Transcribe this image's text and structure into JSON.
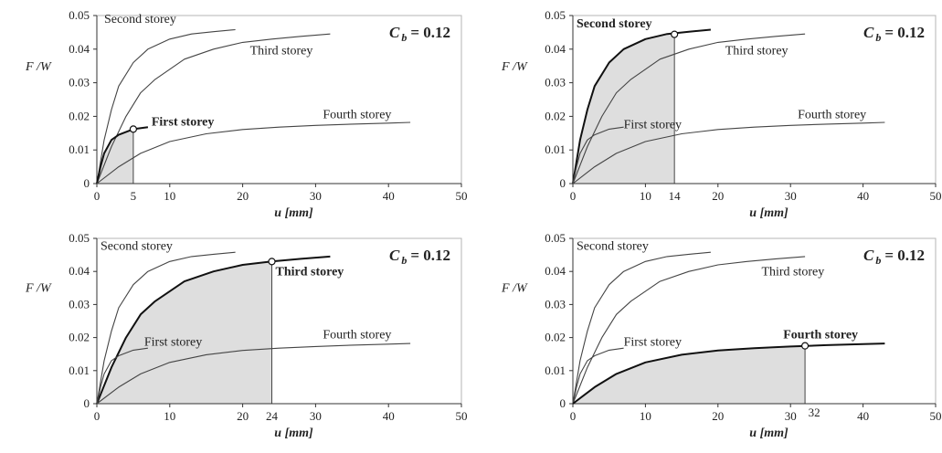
{
  "chart_data": [
    {
      "type": "line",
      "highlight": "First storey",
      "marker": {
        "x": 5,
        "y": 0.0162
      },
      "marker_label": "5",
      "coefficient": {
        "symbol": "C",
        "subscript": "b",
        "value": "= 0.12"
      },
      "xlabel": "u [mm]",
      "ylabel": "F /W",
      "xlim": [
        0,
        50
      ],
      "ylim": [
        0,
        0.05
      ],
      "xticks": [
        "0",
        "10",
        "20",
        "30",
        "40",
        "50"
      ],
      "yticks": [
        "0",
        "0.01",
        "0.02",
        "0.03",
        "0.04",
        "0.05"
      ],
      "series": [
        {
          "name": "Second storey",
          "x": [
            0,
            1,
            2,
            3,
            5,
            7,
            10,
            13,
            16,
            19
          ],
          "y": [
            0,
            0.013,
            0.022,
            0.029,
            0.036,
            0.04,
            0.043,
            0.0445,
            0.0452,
            0.0458
          ]
        },
        {
          "name": "Third storey",
          "x": [
            0,
            2,
            4,
            6,
            8,
            12,
            16,
            20,
            24,
            28,
            32
          ],
          "y": [
            0,
            0.011,
            0.02,
            0.027,
            0.031,
            0.037,
            0.04,
            0.042,
            0.043,
            0.0438,
            0.0445
          ]
        },
        {
          "name": "First storey",
          "x": [
            0,
            0.5,
            1,
            2,
            3,
            5,
            7
          ],
          "y": [
            0,
            0.005,
            0.009,
            0.013,
            0.0145,
            0.0162,
            0.0168
          ]
        },
        {
          "name": "Fourth storey",
          "x": [
            0,
            3,
            6,
            10,
            15,
            20,
            25,
            30,
            35,
            40,
            43
          ],
          "y": [
            0,
            0.005,
            0.009,
            0.0125,
            0.0148,
            0.0161,
            0.0168,
            0.0173,
            0.0177,
            0.018,
            0.0182
          ]
        }
      ]
    },
    {
      "type": "line",
      "highlight": "Second storey",
      "marker": {
        "x": 14,
        "y": 0.0444
      },
      "marker_label": "14",
      "coefficient": {
        "symbol": "C",
        "subscript": "b",
        "value": "= 0.12"
      },
      "xlabel": "u [mm]",
      "ylabel": "F /W",
      "xlim": [
        0,
        50
      ],
      "ylim": [
        0,
        0.05
      ],
      "xticks": [
        "0",
        "10",
        "20",
        "30",
        "40",
        "50"
      ],
      "yticks": [
        "0",
        "0.01",
        "0.02",
        "0.03",
        "0.04",
        "0.05"
      ],
      "series": [
        {
          "name": "Second storey",
          "x": [
            0,
            1,
            2,
            3,
            5,
            7,
            10,
            13,
            16,
            19
          ],
          "y": [
            0,
            0.013,
            0.022,
            0.029,
            0.036,
            0.04,
            0.043,
            0.0445,
            0.0452,
            0.0458
          ]
        },
        {
          "name": "Third storey",
          "x": [
            0,
            2,
            4,
            6,
            8,
            12,
            16,
            20,
            24,
            28,
            32
          ],
          "y": [
            0,
            0.011,
            0.02,
            0.027,
            0.031,
            0.037,
            0.04,
            0.042,
            0.043,
            0.0438,
            0.0445
          ]
        },
        {
          "name": "First storey",
          "x": [
            0,
            0.5,
            1,
            2,
            3,
            5,
            7
          ],
          "y": [
            0,
            0.005,
            0.009,
            0.013,
            0.0145,
            0.0162,
            0.0168
          ]
        },
        {
          "name": "Fourth storey",
          "x": [
            0,
            3,
            6,
            10,
            15,
            20,
            25,
            30,
            35,
            40,
            43
          ],
          "y": [
            0,
            0.005,
            0.009,
            0.0125,
            0.0148,
            0.0161,
            0.0168,
            0.0173,
            0.0177,
            0.018,
            0.0182
          ]
        }
      ]
    },
    {
      "type": "line",
      "highlight": "Third storey",
      "marker": {
        "x": 24,
        "y": 0.043
      },
      "marker_label": "24",
      "coefficient": {
        "symbol": "C",
        "subscript": "b",
        "value": "= 0.12"
      },
      "xlabel": "u [mm]",
      "ylabel": "F /W",
      "xlim": [
        0,
        50
      ],
      "ylim": [
        0,
        0.05
      ],
      "xticks": [
        "0",
        "10",
        "20",
        "30",
        "40",
        "50"
      ],
      "yticks": [
        "0",
        "0.01",
        "0.02",
        "0.03",
        "0.04",
        "0.05"
      ],
      "series": [
        {
          "name": "Second storey",
          "x": [
            0,
            1,
            2,
            3,
            5,
            7,
            10,
            13,
            16,
            19
          ],
          "y": [
            0,
            0.013,
            0.022,
            0.029,
            0.036,
            0.04,
            0.043,
            0.0445,
            0.0452,
            0.0458
          ]
        },
        {
          "name": "Third storey",
          "x": [
            0,
            2,
            4,
            6,
            8,
            12,
            16,
            20,
            24,
            28,
            32
          ],
          "y": [
            0,
            0.011,
            0.02,
            0.027,
            0.031,
            0.037,
            0.04,
            0.042,
            0.043,
            0.0438,
            0.0445
          ]
        },
        {
          "name": "First storey",
          "x": [
            0,
            0.5,
            1,
            2,
            3,
            5,
            7
          ],
          "y": [
            0,
            0.005,
            0.009,
            0.013,
            0.0145,
            0.0162,
            0.0168
          ]
        },
        {
          "name": "Fourth storey",
          "x": [
            0,
            3,
            6,
            10,
            15,
            20,
            25,
            30,
            35,
            40,
            43
          ],
          "y": [
            0,
            0.005,
            0.009,
            0.0125,
            0.0148,
            0.0161,
            0.0168,
            0.0173,
            0.0177,
            0.018,
            0.0182
          ]
        }
      ]
    },
    {
      "type": "line",
      "highlight": "Fourth storey",
      "marker": {
        "x": 32,
        "y": 0.0175
      },
      "marker_label": "32",
      "coefficient": {
        "symbol": "C",
        "subscript": "b",
        "value": "= 0.12"
      },
      "xlabel": "u [mm]",
      "ylabel": "F /W",
      "xlim": [
        0,
        50
      ],
      "ylim": [
        0,
        0.05
      ],
      "xticks": [
        "0",
        "10",
        "20",
        "30",
        "40",
        "50"
      ],
      "yticks": [
        "0",
        "0.01",
        "0.02",
        "0.03",
        "0.04",
        "0.05"
      ],
      "series": [
        {
          "name": "Second storey",
          "x": [
            0,
            1,
            2,
            3,
            5,
            7,
            10,
            13,
            16,
            19
          ],
          "y": [
            0,
            0.013,
            0.022,
            0.029,
            0.036,
            0.04,
            0.043,
            0.0445,
            0.0452,
            0.0458
          ]
        },
        {
          "name": "Third storey",
          "x": [
            0,
            2,
            4,
            6,
            8,
            12,
            16,
            20,
            24,
            28,
            32
          ],
          "y": [
            0,
            0.011,
            0.02,
            0.027,
            0.031,
            0.037,
            0.04,
            0.042,
            0.043,
            0.0438,
            0.0445
          ]
        },
        {
          "name": "First storey",
          "x": [
            0,
            0.5,
            1,
            2,
            3,
            5,
            7
          ],
          "y": [
            0,
            0.005,
            0.009,
            0.013,
            0.0145,
            0.0162,
            0.0168
          ]
        },
        {
          "name": "Fourth storey",
          "x": [
            0,
            3,
            6,
            10,
            15,
            20,
            25,
            30,
            35,
            40,
            43
          ],
          "y": [
            0,
            0.005,
            0.009,
            0.0125,
            0.0148,
            0.0161,
            0.0168,
            0.0173,
            0.0177,
            0.018,
            0.0182
          ]
        }
      ]
    }
  ]
}
